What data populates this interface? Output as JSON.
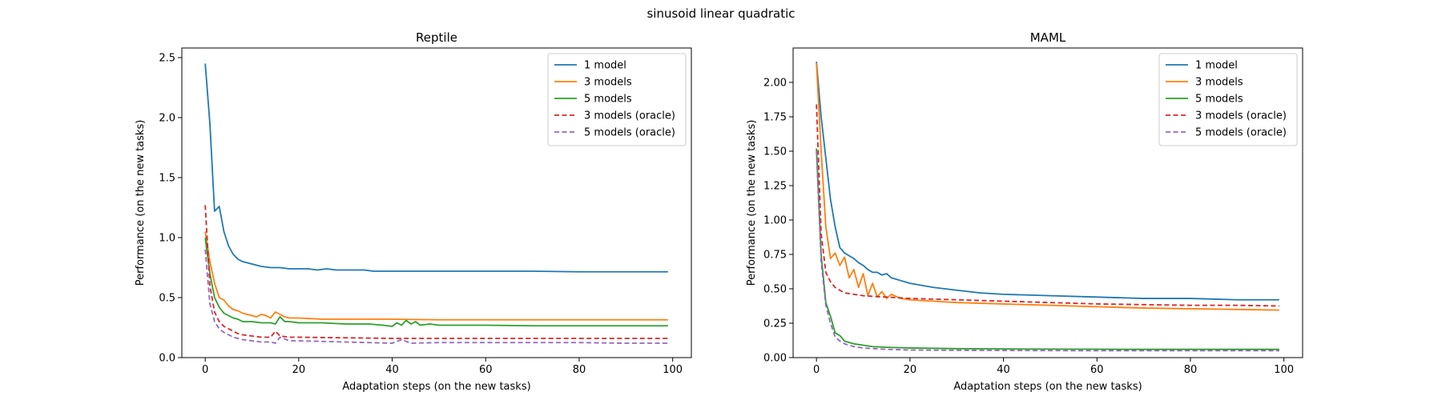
{
  "figure": {
    "suptitle": "sinusoid linear quadratic"
  },
  "colors": {
    "1 model": "#1f77b4",
    "3 models": "#ff7f0e",
    "5 models": "#2ca02c",
    "3 models (oracle)": "#d62728",
    "5 models (oracle)": "#9467bd"
  },
  "chart_data": [
    {
      "type": "line",
      "title": "Reptile",
      "xlabel": "Adaptation steps (on the new tasks)",
      "ylabel": "Performance (on the new tasks)",
      "xlim": [
        -5,
        104
      ],
      "ylim": [
        0.0,
        2.58
      ],
      "xticks": [
        0,
        20,
        40,
        60,
        80,
        100
      ],
      "yticks": [
        0.0,
        0.5,
        1.0,
        1.5,
        2.0,
        2.5
      ],
      "ytick_decimals": 1,
      "legend_position": "top-right",
      "grid": false,
      "series": [
        {
          "name": "1 model",
          "style": "solid",
          "points": [
            [
              0,
              2.45
            ],
            [
              1,
              1.95
            ],
            [
              2,
              1.22
            ],
            [
              3,
              1.26
            ],
            [
              4,
              1.05
            ],
            [
              5,
              0.93
            ],
            [
              6,
              0.86
            ],
            [
              7,
              0.82
            ],
            [
              8,
              0.8
            ],
            [
              10,
              0.78
            ],
            [
              12,
              0.76
            ],
            [
              14,
              0.75
            ],
            [
              16,
              0.75
            ],
            [
              18,
              0.74
            ],
            [
              20,
              0.74
            ],
            [
              22,
              0.74
            ],
            [
              24,
              0.73
            ],
            [
              26,
              0.74
            ],
            [
              28,
              0.73
            ],
            [
              30,
              0.73
            ],
            [
              32,
              0.73
            ],
            [
              34,
              0.73
            ],
            [
              36,
              0.72
            ],
            [
              40,
              0.72
            ],
            [
              50,
              0.72
            ],
            [
              60,
              0.72
            ],
            [
              70,
              0.72
            ],
            [
              80,
              0.715
            ],
            [
              90,
              0.715
            ],
            [
              99,
              0.715
            ]
          ]
        },
        {
          "name": "3 models",
          "style": "solid",
          "points": [
            [
              0,
              1.05
            ],
            [
              1,
              0.8
            ],
            [
              2,
              0.62
            ],
            [
              3,
              0.5
            ],
            [
              4,
              0.48
            ],
            [
              5,
              0.43
            ],
            [
              6,
              0.4
            ],
            [
              7,
              0.39
            ],
            [
              8,
              0.37
            ],
            [
              9,
              0.36
            ],
            [
              10,
              0.35
            ],
            [
              11,
              0.34
            ],
            [
              12,
              0.36
            ],
            [
              13,
              0.35
            ],
            [
              14,
              0.33
            ],
            [
              15,
              0.38
            ],
            [
              16,
              0.36
            ],
            [
              17,
              0.34
            ],
            [
              18,
              0.33
            ],
            [
              20,
              0.33
            ],
            [
              25,
              0.32
            ],
            [
              30,
              0.32
            ],
            [
              40,
              0.32
            ],
            [
              50,
              0.315
            ],
            [
              60,
              0.315
            ],
            [
              70,
              0.315
            ],
            [
              80,
              0.315
            ],
            [
              90,
              0.315
            ],
            [
              99,
              0.315
            ]
          ]
        },
        {
          "name": "5 models",
          "style": "solid",
          "points": [
            [
              0,
              1.0
            ],
            [
              1,
              0.7
            ],
            [
              2,
              0.5
            ],
            [
              3,
              0.42
            ],
            [
              4,
              0.37
            ],
            [
              5,
              0.35
            ],
            [
              6,
              0.33
            ],
            [
              7,
              0.32
            ],
            [
              8,
              0.3
            ],
            [
              10,
              0.3
            ],
            [
              12,
              0.29
            ],
            [
              14,
              0.29
            ],
            [
              15,
              0.28
            ],
            [
              16,
              0.34
            ],
            [
              17,
              0.3
            ],
            [
              18,
              0.3
            ],
            [
              20,
              0.29
            ],
            [
              25,
              0.29
            ],
            [
              30,
              0.28
            ],
            [
              35,
              0.28
            ],
            [
              38,
              0.27
            ],
            [
              40,
              0.26
            ],
            [
              41,
              0.29
            ],
            [
              42,
              0.27
            ],
            [
              43,
              0.31
            ],
            [
              44,
              0.28
            ],
            [
              45,
              0.3
            ],
            [
              46,
              0.27
            ],
            [
              48,
              0.28
            ],
            [
              50,
              0.27
            ],
            [
              60,
              0.27
            ],
            [
              70,
              0.265
            ],
            [
              80,
              0.265
            ],
            [
              90,
              0.265
            ],
            [
              99,
              0.265
            ]
          ]
        },
        {
          "name": "3 models (oracle)",
          "style": "dashed",
          "points": [
            [
              0,
              1.27
            ],
            [
              1,
              0.6
            ],
            [
              2,
              0.38
            ],
            [
              3,
              0.3
            ],
            [
              4,
              0.26
            ],
            [
              5,
              0.24
            ],
            [
              6,
              0.22
            ],
            [
              7,
              0.2
            ],
            [
              8,
              0.19
            ],
            [
              10,
              0.18
            ],
            [
              12,
              0.17
            ],
            [
              14,
              0.17
            ],
            [
              15,
              0.22
            ],
            [
              16,
              0.18
            ],
            [
              18,
              0.17
            ],
            [
              20,
              0.17
            ],
            [
              30,
              0.165
            ],
            [
              40,
              0.16
            ],
            [
              50,
              0.16
            ],
            [
              60,
              0.16
            ],
            [
              70,
              0.16
            ],
            [
              80,
              0.16
            ],
            [
              90,
              0.16
            ],
            [
              99,
              0.16
            ]
          ]
        },
        {
          "name": "5 models (oracle)",
          "style": "dashed",
          "points": [
            [
              0,
              0.9
            ],
            [
              1,
              0.45
            ],
            [
              2,
              0.3
            ],
            [
              3,
              0.24
            ],
            [
              4,
              0.21
            ],
            [
              5,
              0.19
            ],
            [
              6,
              0.17
            ],
            [
              7,
              0.16
            ],
            [
              8,
              0.15
            ],
            [
              10,
              0.14
            ],
            [
              12,
              0.13
            ],
            [
              14,
              0.13
            ],
            [
              15,
              0.12
            ],
            [
              16,
              0.17
            ],
            [
              18,
              0.14
            ],
            [
              20,
              0.14
            ],
            [
              30,
              0.13
            ],
            [
              40,
              0.12
            ],
            [
              42,
              0.15
            ],
            [
              44,
              0.12
            ],
            [
              50,
              0.125
            ],
            [
              60,
              0.125
            ],
            [
              70,
              0.125
            ],
            [
              80,
              0.125
            ],
            [
              90,
              0.12
            ],
            [
              99,
              0.12
            ]
          ]
        }
      ]
    },
    {
      "type": "line",
      "title": "MAML",
      "xlabel": "Adaptation steps (on the new tasks)",
      "ylabel": "Performance (on the new tasks)",
      "xlim": [
        -5,
        104
      ],
      "ylim": [
        0.0,
        2.25
      ],
      "xticks": [
        0,
        20,
        40,
        60,
        80,
        100
      ],
      "yticks": [
        0.0,
        0.25,
        0.5,
        0.75,
        1.0,
        1.25,
        1.5,
        1.75,
        2.0
      ],
      "ytick_decimals": 2,
      "legend_position": "top-right",
      "grid": false,
      "series": [
        {
          "name": "1 model",
          "style": "solid",
          "points": [
            [
              0,
              2.15
            ],
            [
              1,
              1.75
            ],
            [
              2,
              1.45
            ],
            [
              3,
              1.15
            ],
            [
              4,
              0.95
            ],
            [
              5,
              0.8
            ],
            [
              6,
              0.76
            ],
            [
              7,
              0.74
            ],
            [
              8,
              0.72
            ],
            [
              9,
              0.69
            ],
            [
              10,
              0.67
            ],
            [
              11,
              0.64
            ],
            [
              12,
              0.62
            ],
            [
              13,
              0.62
            ],
            [
              14,
              0.6
            ],
            [
              15,
              0.61
            ],
            [
              16,
              0.58
            ],
            [
              18,
              0.56
            ],
            [
              20,
              0.54
            ],
            [
              25,
              0.51
            ],
            [
              30,
              0.49
            ],
            [
              35,
              0.47
            ],
            [
              40,
              0.46
            ],
            [
              50,
              0.45
            ],
            [
              60,
              0.44
            ],
            [
              70,
              0.43
            ],
            [
              80,
              0.43
            ],
            [
              90,
              0.42
            ],
            [
              99,
              0.42
            ]
          ]
        },
        {
          "name": "3 models",
          "style": "solid",
          "points": [
            [
              0,
              2.14
            ],
            [
              1,
              1.5
            ],
            [
              2,
              0.95
            ],
            [
              3,
              0.72
            ],
            [
              4,
              0.76
            ],
            [
              5,
              0.67
            ],
            [
              6,
              0.73
            ],
            [
              7,
              0.58
            ],
            [
              8,
              0.64
            ],
            [
              9,
              0.51
            ],
            [
              10,
              0.61
            ],
            [
              11,
              0.45
            ],
            [
              12,
              0.54
            ],
            [
              13,
              0.44
            ],
            [
              14,
              0.48
            ],
            [
              15,
              0.43
            ],
            [
              16,
              0.46
            ],
            [
              18,
              0.43
            ],
            [
              20,
              0.42
            ],
            [
              25,
              0.41
            ],
            [
              30,
              0.4
            ],
            [
              40,
              0.39
            ],
            [
              50,
              0.38
            ],
            [
              60,
              0.37
            ],
            [
              70,
              0.36
            ],
            [
              80,
              0.355
            ],
            [
              90,
              0.35
            ],
            [
              99,
              0.345
            ]
          ]
        },
        {
          "name": "5 models",
          "style": "solid",
          "points": [
            [
              0,
              1.52
            ],
            [
              1,
              0.75
            ],
            [
              2,
              0.4
            ],
            [
              3,
              0.3
            ],
            [
              4,
              0.18
            ],
            [
              5,
              0.16
            ],
            [
              6,
              0.12
            ],
            [
              7,
              0.11
            ],
            [
              8,
              0.1
            ],
            [
              10,
              0.09
            ],
            [
              12,
              0.08
            ],
            [
              15,
              0.075
            ],
            [
              20,
              0.07
            ],
            [
              30,
              0.065
            ],
            [
              40,
              0.063
            ],
            [
              50,
              0.062
            ],
            [
              60,
              0.061
            ],
            [
              70,
              0.06
            ],
            [
              80,
              0.06
            ],
            [
              90,
              0.06
            ],
            [
              99,
              0.06
            ]
          ]
        },
        {
          "name": "3 models (oracle)",
          "style": "dashed",
          "points": [
            [
              0,
              1.84
            ],
            [
              1,
              0.9
            ],
            [
              2,
              0.62
            ],
            [
              3,
              0.55
            ],
            [
              4,
              0.51
            ],
            [
              5,
              0.49
            ],
            [
              6,
              0.47
            ],
            [
              8,
              0.46
            ],
            [
              10,
              0.45
            ],
            [
              12,
              0.445
            ],
            [
              15,
              0.44
            ],
            [
              20,
              0.43
            ],
            [
              30,
              0.42
            ],
            [
              40,
              0.41
            ],
            [
              50,
              0.4
            ],
            [
              60,
              0.39
            ],
            [
              70,
              0.385
            ],
            [
              80,
              0.38
            ],
            [
              90,
              0.38
            ],
            [
              99,
              0.375
            ]
          ]
        },
        {
          "name": "5 models (oracle)",
          "style": "dashed",
          "points": [
            [
              0,
              1.5
            ],
            [
              1,
              0.7
            ],
            [
              2,
              0.38
            ],
            [
              3,
              0.25
            ],
            [
              4,
              0.15
            ],
            [
              5,
              0.12
            ],
            [
              6,
              0.1
            ],
            [
              7,
              0.09
            ],
            [
              8,
              0.08
            ],
            [
              10,
              0.07
            ],
            [
              15,
              0.06
            ],
            [
              20,
              0.055
            ],
            [
              30,
              0.053
            ],
            [
              40,
              0.052
            ],
            [
              60,
              0.05
            ],
            [
              80,
              0.05
            ],
            [
              99,
              0.05
            ]
          ]
        }
      ]
    }
  ]
}
